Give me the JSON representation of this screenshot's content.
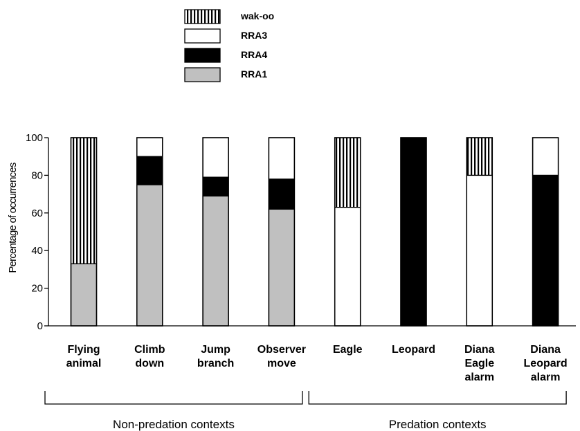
{
  "chart_data": {
    "type": "bar",
    "stacked": true,
    "ylabel": "Percentage of occurrences",
    "ylim": [
      0,
      100
    ],
    "yticks": [
      0,
      20,
      40,
      60,
      80,
      100
    ],
    "categories": [
      [
        "Flying",
        "animal"
      ],
      [
        "Climb",
        "down"
      ],
      [
        "Jump",
        "branch"
      ],
      [
        "Observer",
        "move"
      ],
      [
        "Eagle"
      ],
      [
        "Leopard"
      ],
      [
        "Diana",
        "Eagle",
        "alarm"
      ],
      [
        "Diana",
        "Leopard",
        "alarm"
      ]
    ],
    "series": [
      {
        "name": "RRA1",
        "fill": "#c0c0c0",
        "values": [
          33,
          75,
          69,
          62,
          0,
          0,
          0,
          0
        ]
      },
      {
        "name": "RRA4",
        "fill": "#000000",
        "values": [
          0,
          15,
          10,
          16,
          0,
          100,
          0,
          80
        ]
      },
      {
        "name": "RRA3",
        "fill": "#ffffff",
        "values": [
          0,
          10,
          21,
          22,
          63,
          0,
          80,
          20
        ]
      },
      {
        "name": "wak-oo",
        "fill": "stripes",
        "values": [
          67,
          0,
          0,
          0,
          37,
          0,
          20,
          0
        ]
      }
    ],
    "legend_order": [
      "wak-oo",
      "RRA3",
      "RRA4",
      "RRA1"
    ],
    "legend_position": "top",
    "groups": [
      {
        "label": "Non-predation contexts",
        "from": 0,
        "to": 3
      },
      {
        "label": "Predation contexts",
        "from": 4,
        "to": 7
      }
    ]
  }
}
